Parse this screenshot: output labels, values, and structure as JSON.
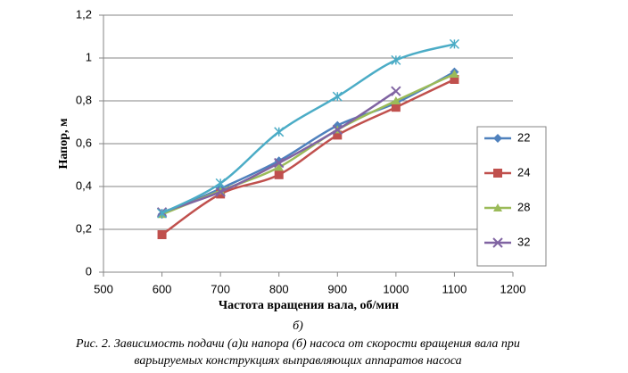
{
  "chart_data": {
    "type": "line",
    "x": [
      600,
      700,
      800,
      900,
      1000,
      1100
    ],
    "xlim": [
      500,
      1200
    ],
    "xticks": [
      500,
      600,
      700,
      800,
      900,
      1000,
      1100,
      1200
    ],
    "ylim": [
      0,
      1.2
    ],
    "yticks": [
      0,
      {
        "value": 0.2,
        "label": "0,2"
      },
      {
        "value": 0.4,
        "label": "0,4"
      },
      {
        "value": 0.6,
        "label": "0,6"
      },
      {
        "value": 0.8,
        "label": "0,8"
      },
      1,
      {
        "value": 1.2,
        "label": "1,2"
      }
    ],
    "grid": true,
    "y_label": "Напор, м",
    "x_label": "Частота вращения вала, об/мин",
    "sublabel": "б)",
    "caption": [
      "Рис. 2. Зависимость подачи (а)и напора (б) насоса от скорости вращения вала при",
      "варьируемых конструкциях выправляющих аппаратов насоса"
    ],
    "legend": "right",
    "series": [
      {
        "name": "22",
        "color": "#4f81bd",
        "marker": "diamond",
        "values": [
          0.27,
          0.39,
          0.52,
          0.685,
          0.79,
          0.935
        ]
      },
      {
        "name": "24",
        "color": "#c0504d",
        "marker": "square",
        "values": [
          0.175,
          0.365,
          0.455,
          0.64,
          0.77,
          0.9
        ]
      },
      {
        "name": "28",
        "color": "#9bbb59",
        "marker": "triangle",
        "values": [
          0.27,
          0.38,
          0.49,
          0.665,
          0.8,
          0.925
        ]
      },
      {
        "name": "32",
        "color": "#8064a2",
        "marker": "x",
        "values": [
          0.28,
          0.375,
          0.51,
          0.665,
          0.845,
          null
        ]
      },
      {
        "color": "#4bacc6",
        "marker": "star",
        "values": [
          0.275,
          0.415,
          0.655,
          0.82,
          0.99,
          1.065
        ]
      }
    ]
  }
}
